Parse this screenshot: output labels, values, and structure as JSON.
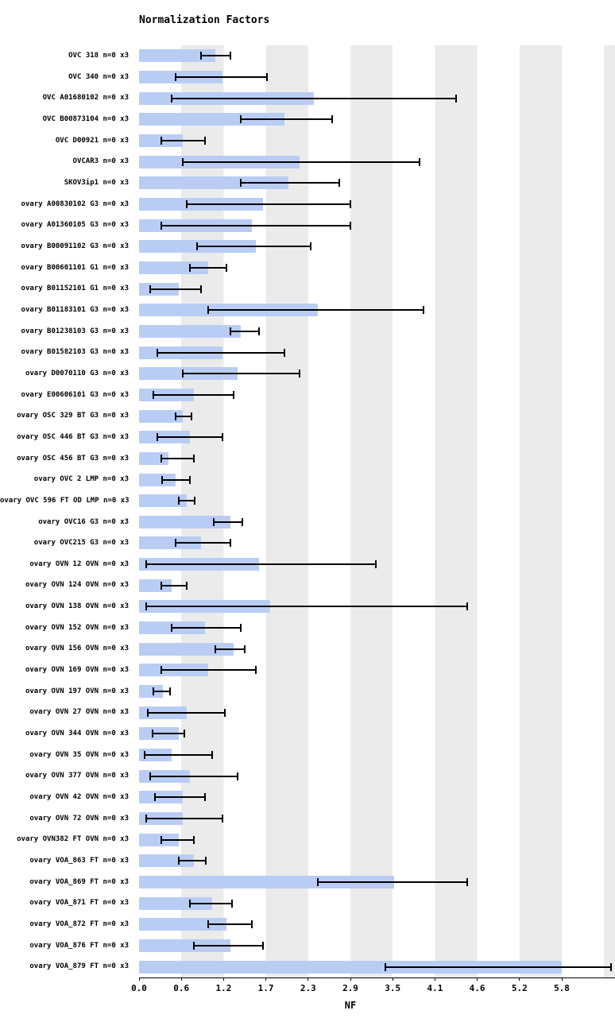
{
  "page": {
    "background_color": "#ffffff",
    "text_color": "#000000"
  },
  "chart_data": {
    "type": "bar",
    "orientation": "horizontal",
    "title": "Normalization Factors",
    "xlabel": "NF",
    "ylabel": "",
    "grid": "alternating-vertical-stripes",
    "legend_position": "none",
    "bar_color": "#b9cdf4",
    "stripe_color": "#ebebeb",
    "plot_background": "#ffffff",
    "error_bar_color": "#000000",
    "x_axis": {
      "min": 0,
      "max": 5.8,
      "tick_labels": [
        "0.0",
        "0.6",
        "1.2",
        "1.7",
        "2.3",
        "2.9",
        "3.5",
        "4.1",
        "4.6",
        "5.2",
        "5.8"
      ],
      "tick_values": [
        0,
        0.58,
        1.16,
        1.74,
        2.32,
        2.9,
        3.48,
        4.06,
        4.64,
        5.22,
        5.8
      ]
    },
    "categories": [
      "OVC 318 n=0 x3",
      "OVC 340 n=0 x3",
      "OVC A01680102 n=0 x3",
      "OVC B00873104 n=0 x3",
      "OVC D00921 n=0 x3",
      "OVCAR3 n=0 x3",
      "SKOV3ip1 n=0 x3",
      "ovary A00830102 G3 n=0 x3",
      "ovary A01360105 G3 n=0 x3",
      "ovary B00091102 G3 n=0 x3",
      "ovary B00601101 G1 n=0 x3",
      "ovary B01152101 G1 n=0 x3",
      "ovary B01183101 G3 n=0 x3",
      "ovary B01238103 G3 n=0 x3",
      "ovary B01582103 G3 n=0 x3",
      "ovary D0070110 G3 n=0 x3",
      "ovary E00606101 G3 n=0 x3",
      "ovary OSC 329 BT G3 n=0 x3",
      "ovary OSC 446 BT G3 n=0 x3",
      "ovary OSC 456 BT G3 n=0 x3",
      "ovary OVC 2 LMP n=0 x3",
      "ovary OVC 596 FT OD LMP n=0 x3",
      "ovary OVC16 G3 n=0 x3",
      "ovary OVC215 G3 n=0 x3",
      "ovary OVN 12 OVN n=0 x3",
      "ovary OVN 124 OVN n=0 x3",
      "ovary OVN 138 OVN n=0 x3",
      "ovary OVN 152 OVN n=0 x3",
      "ovary OVN 156 OVN n=0 x3",
      "ovary OVN 169 OVN n=0 x3",
      "ovary OVN 197 OVN n=0 x3",
      "ovary OVN 27 OVN n=0 x3",
      "ovary OVN 344 OVN n=0 x3",
      "ovary OVN 35 OVN n=0 x3",
      "ovary OVN 377 OVN n=0 x3",
      "ovary OVN 42 OVN n=0 x3",
      "ovary OVN 72 OVN n=0 x3",
      "ovary OVN382 FT OVN n=0 x3",
      "ovary VOA_863 FT n=0 x3",
      "ovary VOA_869 FT n=0 x3",
      "ovary VOA_871 FT n=0 x3",
      "ovary VOA_872 FT n=0 x3",
      "ovary VOA_876 FT n=0 x3",
      "ovary VOA_879 FT n=0 x3"
    ],
    "values": [
      1.05,
      1.15,
      2.4,
      2.0,
      0.6,
      2.2,
      2.05,
      1.7,
      1.55,
      1.6,
      0.95,
      0.55,
      2.45,
      1.4,
      1.15,
      1.35,
      0.75,
      0.6,
      0.7,
      0.4,
      0.5,
      0.65,
      1.25,
      0.85,
      1.65,
      0.45,
      1.8,
      0.9,
      1.3,
      0.95,
      0.33,
      0.65,
      0.55,
      0.45,
      0.7,
      0.6,
      0.6,
      0.55,
      0.75,
      3.5,
      1.0,
      1.2,
      1.25,
      5.8
    ],
    "error_low": [
      0.85,
      0.5,
      0.45,
      1.4,
      0.3,
      0.6,
      1.4,
      0.65,
      0.3,
      0.8,
      0.7,
      0.15,
      0.95,
      1.25,
      0.25,
      0.6,
      0.2,
      0.5,
      0.25,
      0.3,
      0.32,
      0.55,
      1.02,
      0.5,
      0.1,
      0.3,
      0.1,
      0.45,
      1.05,
      0.3,
      0.2,
      0.12,
      0.18,
      0.08,
      0.15,
      0.22,
      0.1,
      0.3,
      0.55,
      2.45,
      0.7,
      0.95,
      0.75,
      3.38
    ],
    "error_high": [
      1.25,
      1.75,
      4.35,
      2.65,
      0.9,
      3.85,
      2.75,
      2.9,
      2.9,
      2.35,
      1.2,
      0.85,
      3.9,
      1.65,
      2.0,
      2.2,
      1.3,
      0.72,
      1.15,
      0.75,
      0.7,
      0.76,
      1.42,
      1.25,
      3.25,
      0.65,
      4.5,
      1.4,
      1.45,
      1.6,
      0.42,
      1.18,
      0.62,
      1.0,
      1.35,
      0.9,
      1.15,
      0.75,
      0.92,
      4.5,
      1.28,
      1.55,
      1.7,
      6.48
    ]
  }
}
